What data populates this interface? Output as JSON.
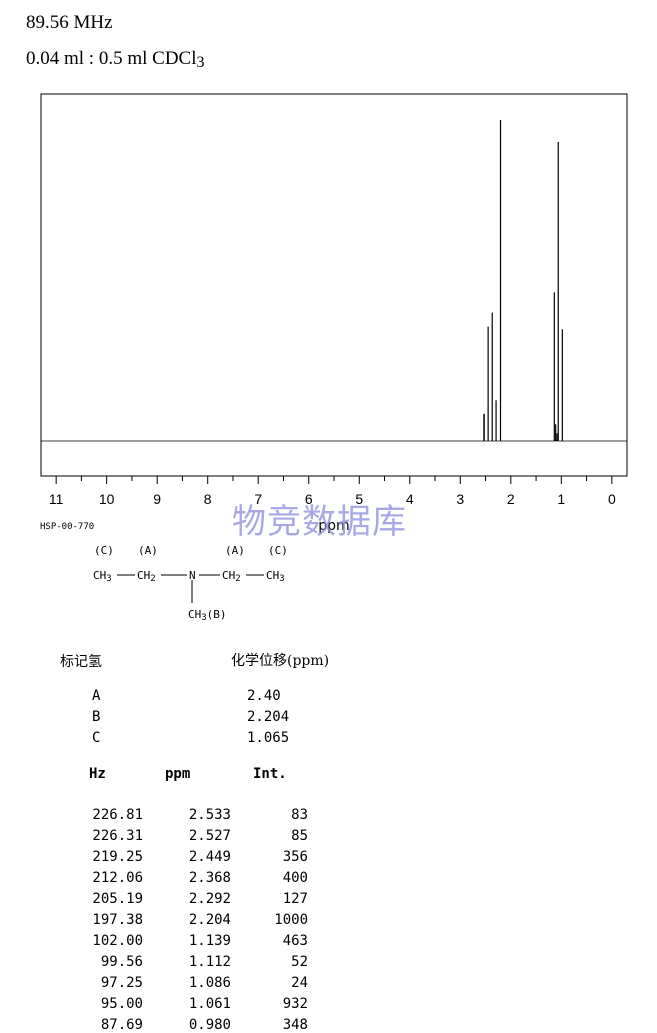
{
  "header": {
    "frequency": "89.56 MHz",
    "sample_main": "0.04 ml : 0.5 ml CDCl",
    "sample_sub": "3"
  },
  "watermark": "物竞数据库",
  "chart_data": {
    "type": "line",
    "xlabel": "ppm",
    "xlim": [
      11.3,
      -0.3
    ],
    "x_ticks": [
      "11",
      "10",
      "9",
      "8",
      "7",
      "6",
      "5",
      "4",
      "3",
      "2",
      "1",
      "0"
    ],
    "peaks": [
      {
        "ppm": 2.533,
        "int": 83
      },
      {
        "ppm": 2.527,
        "int": 85
      },
      {
        "ppm": 2.449,
        "int": 356
      },
      {
        "ppm": 2.368,
        "int": 400
      },
      {
        "ppm": 2.292,
        "int": 127
      },
      {
        "ppm": 2.204,
        "int": 1000
      },
      {
        "ppm": 1.139,
        "int": 463
      },
      {
        "ppm": 1.112,
        "int": 52
      },
      {
        "ppm": 1.086,
        "int": 24
      },
      {
        "ppm": 1.061,
        "int": 932
      },
      {
        "ppm": 0.98,
        "int": 348
      }
    ]
  },
  "structure": {
    "code": "HSP-00-770",
    "labels_top": "(C)  (A)      (A)  (C)",
    "chain": "CH3—CH2—N—CH2—CH3",
    "branch": "CH3(B)"
  },
  "assignments": {
    "col1_header": "标记氢",
    "col2_header": "化学位移(ppm)",
    "rows": [
      {
        "label": "A",
        "shift": "2.40"
      },
      {
        "label": "B",
        "shift": "2.204"
      },
      {
        "label": "C",
        "shift": "1.065"
      }
    ]
  },
  "peak_table": {
    "headers": [
      "Hz",
      "ppm",
      "Int."
    ],
    "rows": [
      [
        "226.81",
        "2.533",
        "83"
      ],
      [
        "226.31",
        "2.527",
        "85"
      ],
      [
        "219.25",
        "2.449",
        "356"
      ],
      [
        "212.06",
        "2.368",
        "400"
      ],
      [
        "205.19",
        "2.292",
        "127"
      ],
      [
        "197.38",
        "2.204",
        "1000"
      ],
      [
        "102.00",
        "1.139",
        "463"
      ],
      [
        "99.56",
        "1.112",
        "52"
      ],
      [
        "97.25",
        "1.086",
        "24"
      ],
      [
        "95.00",
        "1.061",
        "932"
      ],
      [
        "87.69",
        "0.980",
        "348"
      ]
    ]
  }
}
